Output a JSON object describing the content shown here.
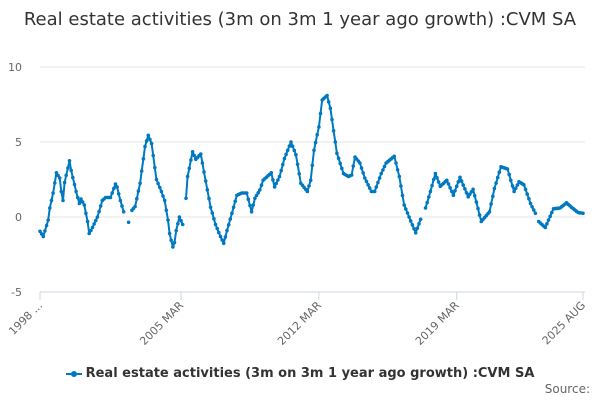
{
  "chart_data": {
    "type": "line",
    "title": "Real estate activities (3m on 3m 1 year ago growth) :CVM SA",
    "xlabel": "",
    "ylabel": "",
    "ylim": [
      -5,
      10
    ],
    "yticks": [
      "10",
      "5",
      "0",
      "-5"
    ],
    "xlim": [
      "1998-01",
      "2025-08"
    ],
    "xticks": [
      {
        "date": "1998-01",
        "label": "1998 ..."
      },
      {
        "date": "2005-03",
        "label": "2005 MAR"
      },
      {
        "date": "2012-03",
        "label": "2012 MAR"
      },
      {
        "date": "2019-03",
        "label": "2019 MAR"
      },
      {
        "date": "2025-08",
        "label": "2025 AUG"
      }
    ],
    "grid": true,
    "legend_position": "bottom",
    "color": "#0079c1",
    "series": [
      {
        "name": "Real estate activities (3m on 3m 1 year ago growth) :CVM SA",
        "points": [
          [
            "1998-01",
            -0.95
          ],
          [
            "1998-03",
            -1.3
          ],
          [
            "1998-06",
            -0.2
          ],
          [
            "1998-07",
            0.6
          ],
          [
            "1998-09",
            1.6
          ],
          [
            "1998-11",
            2.95
          ],
          [
            "1999-01",
            2.6
          ],
          [
            "1999-02",
            1.7
          ],
          [
            "1999-03",
            1.1
          ],
          [
            "1999-04",
            2.3
          ],
          [
            "1999-07",
            3.75
          ],
          [
            "1999-08",
            3.1
          ],
          [
            "1999-11",
            1.7
          ],
          [
            "2000-01",
            0.9
          ],
          [
            "2000-02",
            1.2
          ],
          [
            "2000-04",
            0.8
          ],
          [
            "2000-06",
            -0.3
          ],
          [
            "2000-07",
            -1.1
          ],
          [
            "2000-09",
            -0.7
          ],
          [
            "2000-12",
            0.0
          ],
          [
            "2001-03",
            1.1
          ],
          [
            "2001-05",
            1.3
          ],
          [
            "2001-08",
            1.3
          ],
          [
            "2001-11",
            2.2
          ],
          [
            "2001-12",
            2.0
          ],
          [
            "2002-02",
            1.1
          ],
          [
            "2002-04",
            0.35
          ],
          [
            "2002-05",
            null
          ],
          [
            "2002-07",
            -0.35
          ],
          [
            "2002-08",
            null
          ],
          [
            "2002-09",
            0.45
          ],
          [
            "2002-11",
            0.7
          ],
          [
            "2003-02",
            2.25
          ],
          [
            "2003-05",
            4.7
          ],
          [
            "2003-07",
            5.45
          ],
          [
            "2003-09",
            4.9
          ],
          [
            "2003-12",
            2.5
          ],
          [
            "2004-03",
            1.7
          ],
          [
            "2004-05",
            1.1
          ],
          [
            "2004-07",
            -0.2
          ],
          [
            "2004-08",
            -1.1
          ],
          [
            "2004-10",
            -2.0
          ],
          [
            "2004-11",
            -1.7
          ],
          [
            "2004-12",
            -0.9
          ],
          [
            "2005-02",
            0.0
          ],
          [
            "2005-04",
            -0.5
          ],
          [
            "2005-05",
            null
          ],
          [
            "2005-06",
            1.25
          ],
          [
            "2005-07",
            2.7
          ],
          [
            "2005-10",
            4.35
          ],
          [
            "2005-12",
            3.85
          ],
          [
            "2006-03",
            4.2
          ],
          [
            "2006-06",
            2.4
          ],
          [
            "2006-09",
            0.65
          ],
          [
            "2006-12",
            -0.5
          ],
          [
            "2007-03",
            -1.3
          ],
          [
            "2007-05",
            -1.75
          ],
          [
            "2007-07",
            -0.9
          ],
          [
            "2007-10",
            0.25
          ],
          [
            "2008-01",
            1.45
          ],
          [
            "2008-04",
            1.6
          ],
          [
            "2008-07",
            1.6
          ],
          [
            "2008-10",
            0.35
          ],
          [
            "2008-12",
            1.25
          ],
          [
            "2009-03",
            1.8
          ],
          [
            "2009-05",
            2.45
          ],
          [
            "2009-10",
            2.95
          ],
          [
            "2009-12",
            2.0
          ],
          [
            "2010-03",
            2.7
          ],
          [
            "2010-06",
            3.9
          ],
          [
            "2010-10",
            5.0
          ],
          [
            "2011-01",
            4.15
          ],
          [
            "2011-04",
            2.25
          ],
          [
            "2011-08",
            1.7
          ],
          [
            "2011-10",
            2.45
          ],
          [
            "2011-12",
            4.45
          ],
          [
            "2012-03",
            6.0
          ],
          [
            "2012-05",
            7.8
          ],
          [
            "2012-08",
            8.1
          ],
          [
            "2012-10",
            7.25
          ],
          [
            "2013-02",
            4.25
          ],
          [
            "2013-06",
            2.9
          ],
          [
            "2013-09",
            2.7
          ],
          [
            "2013-11",
            2.8
          ],
          [
            "2014-01",
            4.0
          ],
          [
            "2014-04",
            3.6
          ],
          [
            "2014-07",
            2.6
          ],
          [
            "2014-11",
            1.7
          ],
          [
            "2015-01",
            1.7
          ],
          [
            "2015-05",
            2.9
          ],
          [
            "2015-08",
            3.6
          ],
          [
            "2016-01",
            4.05
          ],
          [
            "2016-04",
            2.7
          ],
          [
            "2016-07",
            0.8
          ],
          [
            "2016-10",
            0.0
          ],
          [
            "2017-02",
            -1.05
          ],
          [
            "2017-05",
            -0.15
          ],
          [
            "2017-06",
            null
          ],
          [
            "2017-08",
            0.6
          ],
          [
            "2017-11",
            1.7
          ],
          [
            "2018-02",
            2.9
          ],
          [
            "2018-05",
            2.05
          ],
          [
            "2018-09",
            2.45
          ],
          [
            "2019-01",
            1.45
          ],
          [
            "2019-05",
            2.65
          ],
          [
            "2019-10",
            1.35
          ],
          [
            "2020-01",
            1.85
          ],
          [
            "2020-06",
            -0.3
          ],
          [
            "2020-11",
            0.35
          ],
          [
            "2021-02",
            1.9
          ],
          [
            "2021-06",
            3.35
          ],
          [
            "2021-10",
            3.2
          ],
          [
            "2022-02",
            1.7
          ],
          [
            "2022-05",
            2.35
          ],
          [
            "2022-08",
            2.15
          ],
          [
            "2022-12",
            0.9
          ],
          [
            "2023-03",
            0.25
          ],
          [
            "2023-04",
            null
          ],
          [
            "2023-05",
            -0.3
          ],
          [
            "2023-09",
            -0.7
          ],
          [
            "2024-02",
            0.55
          ],
          [
            "2024-06",
            0.6
          ],
          [
            "2024-10",
            0.95
          ],
          [
            "2025-01",
            0.65
          ],
          [
            "2025-05",
            0.3
          ],
          [
            "2025-08",
            0.25
          ]
        ]
      }
    ]
  },
  "legend": {
    "label": "Real estate activities (3m on 3m 1 year ago growth) :CVM SA"
  },
  "source": {
    "label": "Source:"
  }
}
